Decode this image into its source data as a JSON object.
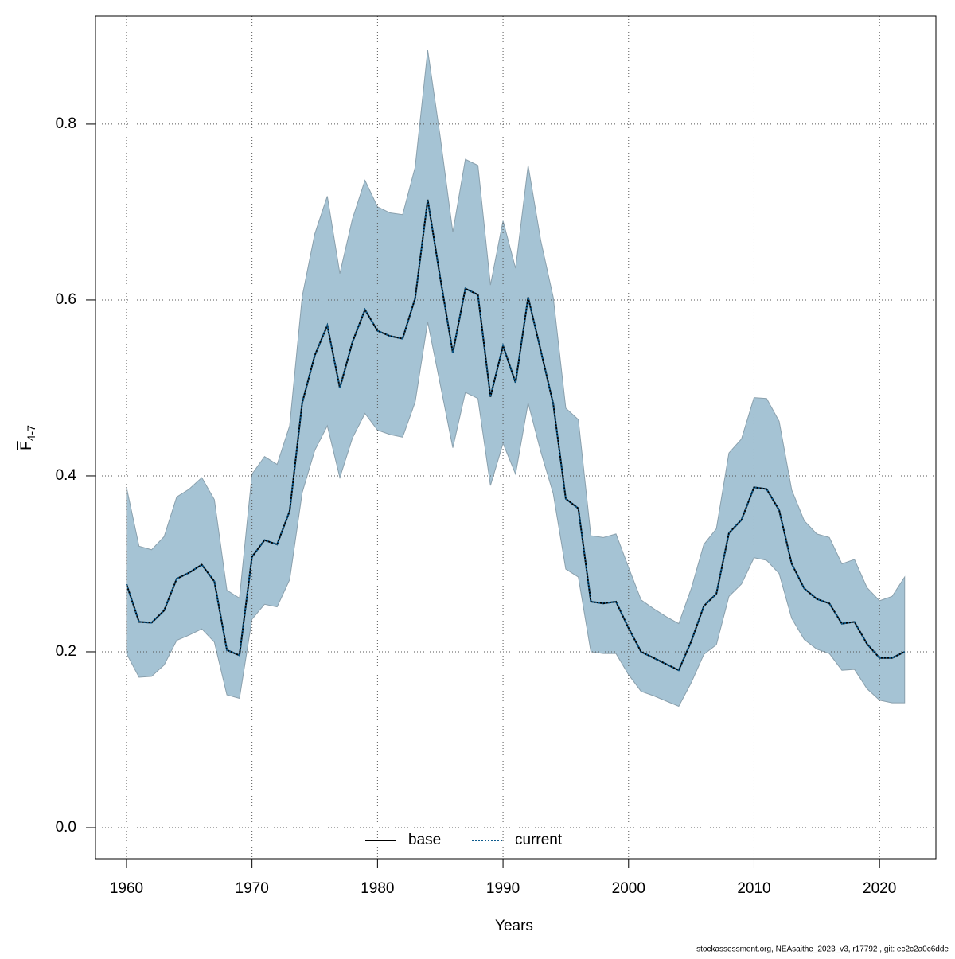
{
  "chart_data": {
    "type": "line",
    "xlabel": "Years",
    "ylabel": {
      "main": "F",
      "sub": "4-7"
    },
    "footer": "stockassessment.org, NEAsaithe_2023_v3, r17792 , git: ec2c2a0c6dde",
    "x": [
      1960,
      1961,
      1962,
      1963,
      1964,
      1965,
      1966,
      1967,
      1968,
      1969,
      1970,
      1971,
      1972,
      1973,
      1974,
      1975,
      1976,
      1977,
      1978,
      1979,
      1980,
      1981,
      1982,
      1983,
      1984,
      1985,
      1986,
      1987,
      1988,
      1989,
      1990,
      1991,
      1992,
      1993,
      1994,
      1995,
      1996,
      1997,
      1998,
      1999,
      2000,
      2001,
      2002,
      2003,
      2004,
      2005,
      2006,
      2007,
      2008,
      2009,
      2010,
      2011,
      2012,
      2013,
      2014,
      2015,
      2016,
      2017,
      2018,
      2019,
      2020,
      2021,
      2022
    ],
    "series": [
      {
        "name": "base",
        "color": "#000000",
        "dash": "solid",
        "values": [
          0.277,
          0.234,
          0.233,
          0.247,
          0.283,
          0.29,
          0.299,
          0.28,
          0.202,
          0.196,
          0.308,
          0.327,
          0.322,
          0.36,
          0.483,
          0.537,
          0.571,
          0.5,
          0.552,
          0.589,
          0.565,
          0.559,
          0.556,
          0.602,
          0.714,
          0.625,
          0.54,
          0.613,
          0.606,
          0.49,
          0.548,
          0.506,
          0.603,
          0.543,
          0.482,
          0.374,
          0.363,
          0.257,
          0.255,
          0.257,
          0.227,
          0.2,
          0.193,
          0.186,
          0.179,
          0.212,
          0.252,
          0.266,
          0.335,
          0.35,
          0.387,
          0.385,
          0.361,
          0.3,
          0.272,
          0.26,
          0.255,
          0.232,
          0.234,
          0.209,
          0.193,
          0.193,
          0.2
        ]
      },
      {
        "name": "current",
        "color": "#0d5a8c",
        "dash": "dotted",
        "values": [
          0.277,
          0.234,
          0.233,
          0.247,
          0.283,
          0.29,
          0.299,
          0.28,
          0.202,
          0.196,
          0.308,
          0.327,
          0.322,
          0.36,
          0.483,
          0.537,
          0.571,
          0.5,
          0.552,
          0.589,
          0.565,
          0.559,
          0.556,
          0.602,
          0.714,
          0.625,
          0.54,
          0.613,
          0.606,
          0.49,
          0.548,
          0.506,
          0.603,
          0.543,
          0.482,
          0.374,
          0.363,
          0.257,
          0.255,
          0.257,
          0.227,
          0.2,
          0.193,
          0.186,
          0.179,
          0.212,
          0.252,
          0.266,
          0.335,
          0.35,
          0.387,
          0.385,
          0.361,
          0.3,
          0.272,
          0.26,
          0.255,
          0.232,
          0.234,
          0.209,
          0.193,
          0.193,
          0.2
        ]
      }
    ],
    "band": {
      "color": "#a5c3d4",
      "lower": [
        0.198,
        0.171,
        0.172,
        0.185,
        0.213,
        0.219,
        0.226,
        0.211,
        0.151,
        0.147,
        0.237,
        0.254,
        0.251,
        0.282,
        0.381,
        0.429,
        0.457,
        0.398,
        0.443,
        0.471,
        0.452,
        0.447,
        0.444,
        0.484,
        0.575,
        0.504,
        0.432,
        0.495,
        0.488,
        0.389,
        0.437,
        0.402,
        0.483,
        0.428,
        0.38,
        0.294,
        0.285,
        0.2,
        0.198,
        0.198,
        0.174,
        0.155,
        0.15,
        0.144,
        0.138,
        0.165,
        0.197,
        0.208,
        0.263,
        0.277,
        0.307,
        0.304,
        0.289,
        0.238,
        0.214,
        0.203,
        0.198,
        0.179,
        0.18,
        0.158,
        0.145,
        0.142,
        0.142
      ],
      "upper": [
        0.387,
        0.32,
        0.316,
        0.331,
        0.376,
        0.385,
        0.398,
        0.373,
        0.27,
        0.261,
        0.402,
        0.422,
        0.413,
        0.457,
        0.604,
        0.675,
        0.718,
        0.63,
        0.692,
        0.736,
        0.706,
        0.699,
        0.697,
        0.751,
        0.884,
        0.785,
        0.677,
        0.76,
        0.753,
        0.617,
        0.69,
        0.636,
        0.753,
        0.668,
        0.603,
        0.477,
        0.464,
        0.332,
        0.33,
        0.334,
        0.296,
        0.259,
        0.249,
        0.24,
        0.232,
        0.272,
        0.322,
        0.34,
        0.426,
        0.442,
        0.489,
        0.488,
        0.462,
        0.384,
        0.349,
        0.334,
        0.33,
        0.3,
        0.305,
        0.273,
        0.258,
        0.263,
        0.285
      ]
    },
    "xlim": [
      1957.53,
      2024.49
    ],
    "xticks": [
      1960,
      1970,
      1980,
      1990,
      2000,
      2010,
      2020
    ],
    "ylim": [
      -0.0353,
      0.923
    ],
    "yticks": [
      {
        "value": 0,
        "label": "0.0"
      },
      0.2,
      0.4,
      0.6,
      0.8
    ],
    "grid": true,
    "legend": "bottom"
  }
}
